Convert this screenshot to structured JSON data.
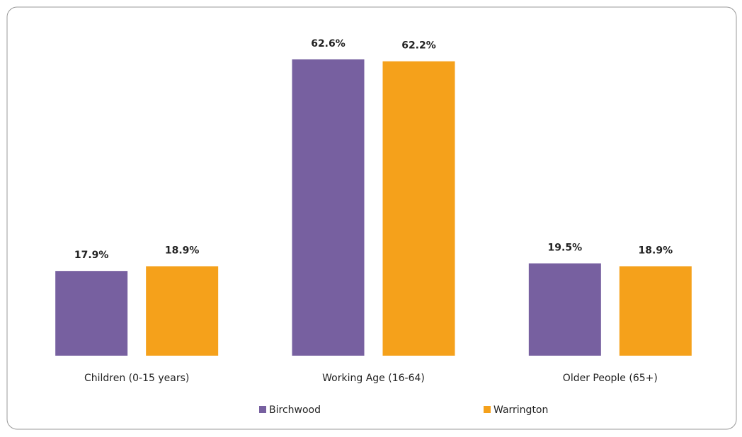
{
  "chart_data": {
    "type": "bar",
    "categories": [
      "Children (0-15 years)",
      "Working Age (16-64)",
      "Older People (65+)"
    ],
    "series": [
      {
        "name": "Birchwood",
        "color": "#7760a0",
        "values": [
          17.9,
          62.6,
          19.5
        ],
        "value_labels": [
          "17.9%",
          "62.6%",
          "19.5%"
        ]
      },
      {
        "name": "Warrington",
        "color": "#f5a11b",
        "values": [
          18.9,
          62.2,
          18.9
        ],
        "value_labels": [
          "18.9%",
          "62.2%",
          "18.9%"
        ]
      }
    ],
    "legend": "bottom"
  }
}
